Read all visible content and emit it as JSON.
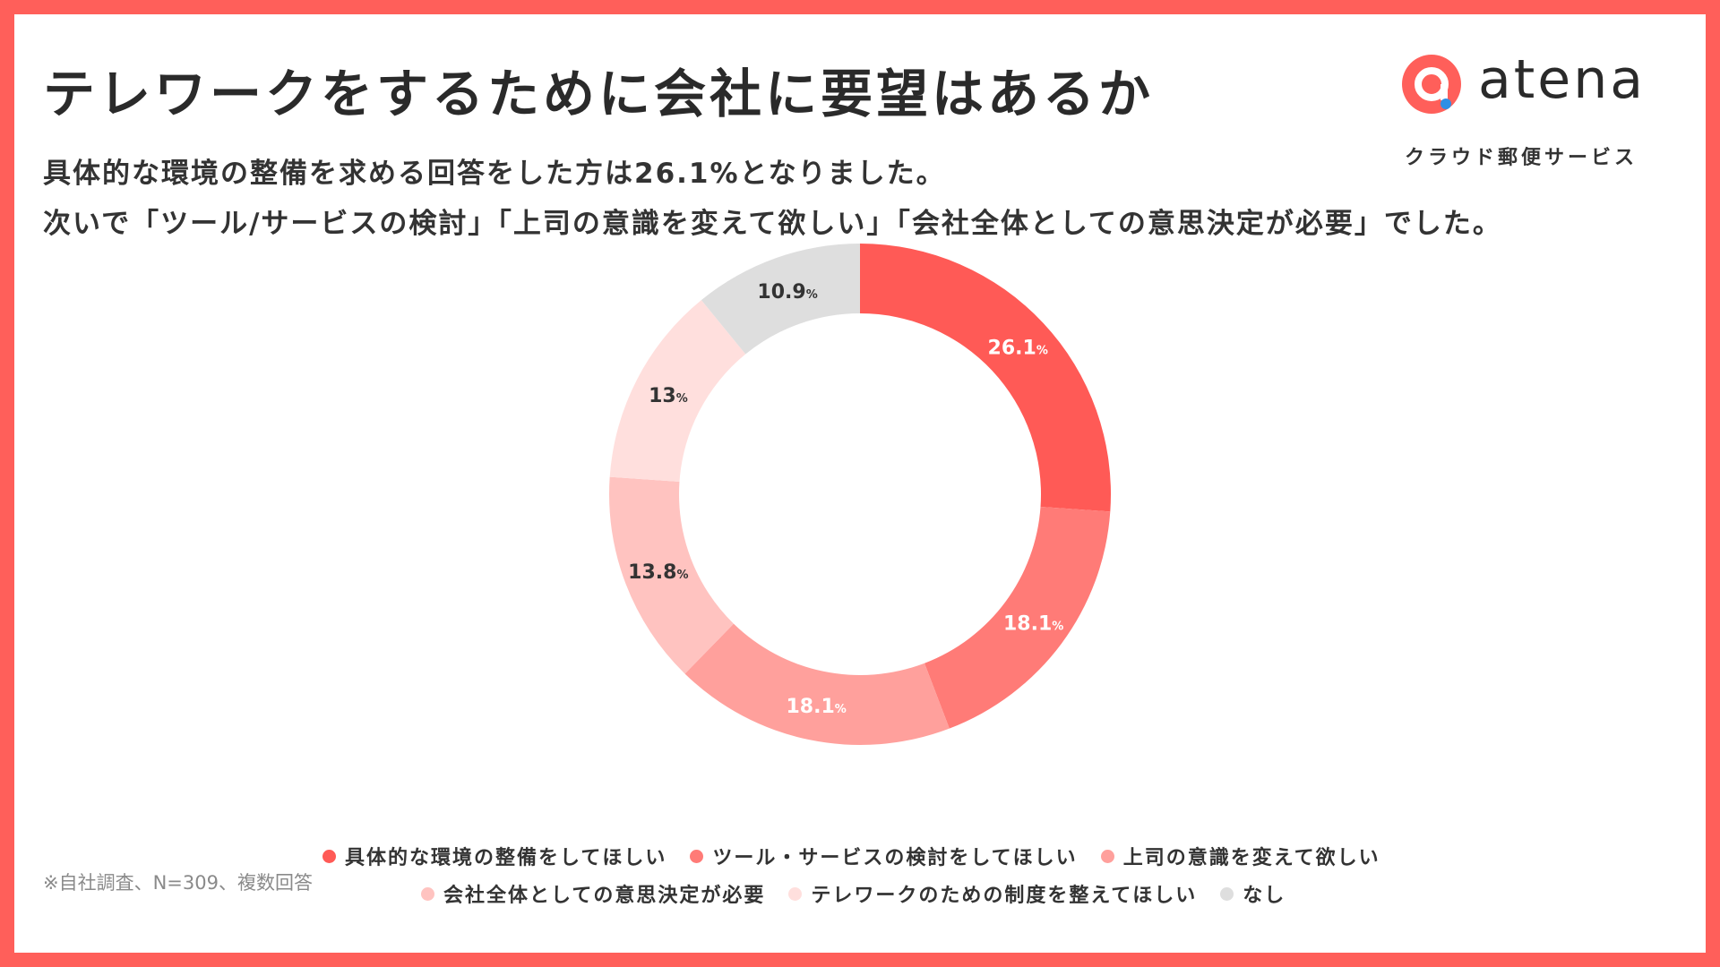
{
  "title": "テレワークをするために会社に要望はあるか",
  "subtitle_line1": "具体的な環境の整備を求める回答をした方は26.1%となりました。",
  "subtitle_line2": "次いで「ツール/サービスの検討」「上司の意識を変えて欲しい」「会社全体としての意思決定が必要」でした。",
  "logo": {
    "name": "atena",
    "tagline": "クラウド郵便サービス",
    "icon": "atena-logo-icon"
  },
  "note": "※自社調査、N=309、複数回答",
  "percent_suffix": "%",
  "chart_data": {
    "type": "pie",
    "donut": true,
    "start": "top",
    "direction": "clockwise",
    "legend_position": "bottom",
    "slices": [
      {
        "label": "具体的な環境の整備をしてほしい",
        "value": 26.1,
        "display": "26.1",
        "color": "#ff5a56",
        "text_color": "#ffffff"
      },
      {
        "label": "ツール・サービスの検討をしてほしい",
        "value": 18.1,
        "display": "18.1",
        "color": "#ff7b77",
        "text_color": "#ffffff"
      },
      {
        "label": "上司の意識を変えて欲しい",
        "value": 18.1,
        "display": "18.1",
        "color": "#ffa09c",
        "text_color": "#ffffff"
      },
      {
        "label": "会社全体としての意思決定が必要",
        "value": 13.8,
        "display": "13.8",
        "color": "#ffc3c0",
        "text_color": "#333333"
      },
      {
        "label": "テレワークのための制度を整えてほしい",
        "value": 13,
        "display": "13",
        "color": "#ffdfdd",
        "text_color": "#333333"
      },
      {
        "label": "なし",
        "value": 10.9,
        "display": "10.9",
        "color": "#dedede",
        "text_color": "#333333"
      }
    ]
  }
}
